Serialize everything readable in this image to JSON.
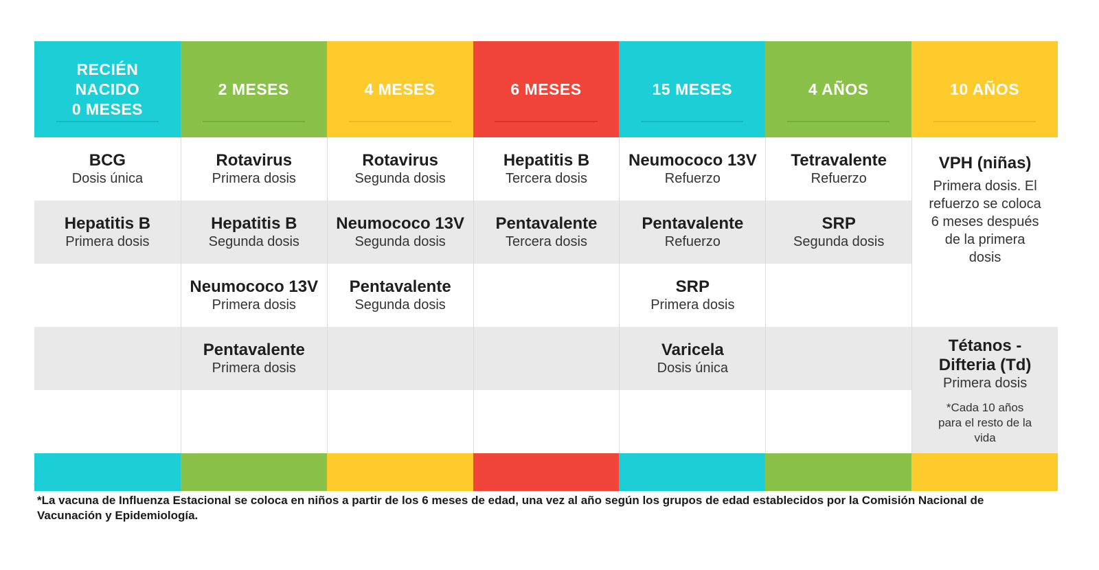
{
  "colors": {
    "cyan": "#1ccfd6",
    "green": "#8ac249",
    "yellow": "#fdcc2c",
    "red": "#f2453a",
    "cell_shade": "#e9e9e9"
  },
  "headers": [
    {
      "label": "RECIÉN NACIDO 0 MESES",
      "lines": [
        "RECIÉN",
        "NACIDO",
        "0 MESES"
      ],
      "color": "#1ccfd6",
      "line": "#10a9ae"
    },
    {
      "label": "2 MESES",
      "color": "#8ac249",
      "line": "#5fa02a"
    },
    {
      "label": "4 MESES",
      "color": "#fdcc2c",
      "line": "#e6a91c"
    },
    {
      "label": "6 MESES",
      "color": "#f2453a",
      "line": "#c9221a"
    },
    {
      "label": "15 MESES",
      "color": "#1ccfd6",
      "line": "#10a9ae"
    },
    {
      "label": "4 AÑOS",
      "color": "#8ac249",
      "line": "#5fa02a"
    },
    {
      "label": "10 AÑOS",
      "color": "#fdcc2c",
      "line": "#e6a91c"
    }
  ],
  "rows": [
    [
      {
        "name": "BCG",
        "dose": "Dosis única"
      },
      {
        "name": "Rotavirus",
        "dose": "Primera dosis"
      },
      {
        "name": "Rotavirus",
        "dose": "Segunda dosis"
      },
      {
        "name": "Hepatitis B",
        "dose": "Tercera dosis"
      },
      {
        "name": "Neumococo 13V",
        "dose": "Refuerzo"
      },
      {
        "name": "Tetravalente",
        "dose": "Refuerzo"
      }
    ],
    [
      {
        "name": "Hepatitis B",
        "dose": "Primera dosis"
      },
      {
        "name": "Hepatitis B",
        "dose": "Segunda dosis"
      },
      {
        "name": "Neumococo 13V",
        "dose": "Segunda dosis"
      },
      {
        "name": "Pentavalente",
        "dose": "Tercera dosis"
      },
      {
        "name": "Pentavalente",
        "dose": "Refuerzo"
      },
      {
        "name": "SRP",
        "dose": "Segunda dosis"
      }
    ],
    [
      {
        "name": "",
        "dose": ""
      },
      {
        "name": "Neumococo 13V",
        "dose": "Primera dosis"
      },
      {
        "name": "Pentavalente",
        "dose": "Segunda dosis"
      },
      {
        "name": "",
        "dose": ""
      },
      {
        "name": "SRP",
        "dose": "Primera dosis"
      },
      {
        "name": "",
        "dose": ""
      }
    ],
    [
      {
        "name": "",
        "dose": ""
      },
      {
        "name": "Pentavalente",
        "dose": "Primera dosis"
      },
      {
        "name": "",
        "dose": ""
      },
      {
        "name": "",
        "dose": ""
      },
      {
        "name": "Varicela",
        "dose": "Dosis única"
      },
      {
        "name": "",
        "dose": ""
      }
    ]
  ],
  "col10": {
    "vph": {
      "name": "VPH (niñas)",
      "dose": "Primera dosis. El refuerzo se coloca 6 meses después de la primera dosis"
    },
    "td": {
      "name": "Tétanos - Difteria (Td)",
      "dose": "Primera dosis",
      "note": "*Cada 10 años para el resto de la vida"
    }
  },
  "footnote": "*La vacuna de Influenza Estacional se coloca en niños a partir de los 6 meses de edad, una vez al año según los grupos de edad establecidos por la Comisión Nacional de Vacunación y Epidemiología."
}
